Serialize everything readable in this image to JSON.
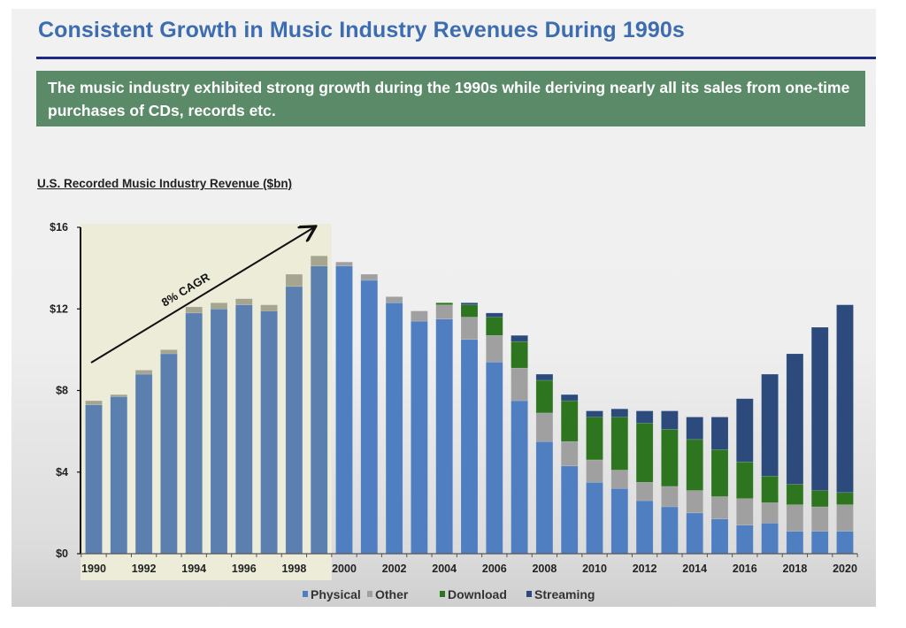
{
  "slide": {
    "title": "Consistent Growth in Music Industry Revenues During 1990s",
    "callout": "The music industry exhibited strong growth during the 1990s while deriving nearly all its sales from one-time purchases of CDs, records etc.",
    "colors": {
      "title": "#3d6db0",
      "rule": "#1f2a86",
      "callout_bg": "#5b8a68",
      "highlight_bg": "#ececd9"
    }
  },
  "chart_data": {
    "type": "bar",
    "stacked": true,
    "title": "U.S. Recorded Music Industry Revenue ($bn)",
    "xlabel": "",
    "ylabel": "",
    "ylim": [
      0,
      16
    ],
    "yticks": [
      0,
      4,
      8,
      12,
      16
    ],
    "ytick_labels": [
      "$0",
      "$4",
      "$8",
      "$12",
      "$16"
    ],
    "grid": false,
    "legend": "bottom",
    "categories": [
      "1990",
      "1991",
      "1992",
      "1993",
      "1994",
      "1995",
      "1996",
      "1997",
      "1998",
      "1999",
      "2000",
      "2001",
      "2002",
      "2003",
      "2004",
      "2005",
      "2006",
      "2007",
      "2008",
      "2009",
      "2010",
      "2011",
      "2012",
      "2013",
      "2014",
      "2015",
      "2016",
      "2017",
      "2018",
      "2019",
      "2020"
    ],
    "xtick_labels": [
      "1990",
      "1992",
      "1994",
      "1996",
      "1998",
      "2000",
      "2002",
      "2004",
      "2006",
      "2008",
      "2010",
      "2012",
      "2014",
      "2016",
      "2018",
      "2020"
    ],
    "series": [
      {
        "name": "Physical",
        "color": "#4f7fc0",
        "values": [
          7.3,
          7.7,
          8.8,
          9.8,
          11.8,
          12.0,
          12.2,
          11.9,
          13.1,
          14.1,
          14.1,
          13.4,
          12.3,
          11.4,
          11.5,
          10.5,
          9.4,
          7.5,
          5.5,
          4.3,
          3.5,
          3.2,
          2.6,
          2.3,
          2.0,
          1.7,
          1.4,
          1.5,
          1.1,
          1.1,
          1.1
        ]
      },
      {
        "name": "Other",
        "color": "#a0a0a0",
        "values": [
          0.2,
          0.1,
          0.2,
          0.2,
          0.3,
          0.3,
          0.3,
          0.3,
          0.6,
          0.5,
          0.2,
          0.3,
          0.3,
          0.5,
          0.7,
          1.1,
          1.3,
          1.6,
          1.4,
          1.2,
          1.1,
          0.9,
          0.9,
          1.0,
          1.1,
          1.1,
          1.3,
          1.0,
          1.3,
          1.2,
          1.3
        ]
      },
      {
        "name": "Download",
        "color": "#2e7520",
        "values": [
          0,
          0,
          0,
          0,
          0,
          0,
          0,
          0,
          0,
          0,
          0,
          0,
          0,
          0,
          0.1,
          0.6,
          0.9,
          1.3,
          1.6,
          2.0,
          2.1,
          2.6,
          2.9,
          2.8,
          2.5,
          2.3,
          1.8,
          1.3,
          1.0,
          0.8,
          0.6
        ]
      },
      {
        "name": "Streaming",
        "color": "#2c4b7c",
        "values": [
          0,
          0,
          0,
          0,
          0,
          0,
          0,
          0,
          0,
          0,
          0,
          0,
          0,
          0,
          0,
          0.1,
          0.2,
          0.3,
          0.3,
          0.3,
          0.3,
          0.4,
          0.6,
          0.9,
          1.1,
          1.6,
          3.1,
          5.0,
          6.4,
          8.0,
          9.2
        ]
      }
    ],
    "highlight": {
      "from": "1990",
      "to": "1999",
      "label": "8% CAGR"
    }
  }
}
